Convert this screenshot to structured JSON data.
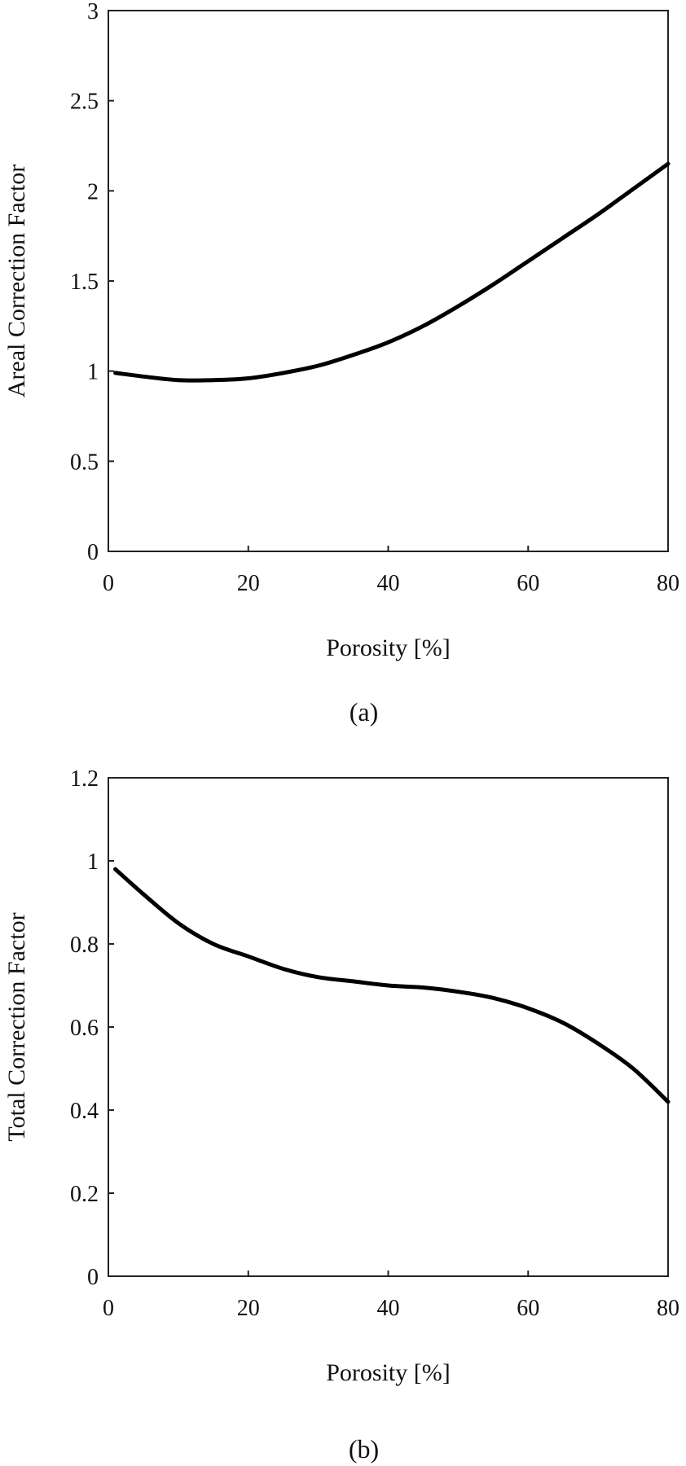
{
  "chart_data": [
    {
      "type": "line",
      "panel_label": "(a)",
      "title": "",
      "xlabel": "Porosity [%]",
      "ylabel": "Areal Correction Factor",
      "xlim": [
        0,
        80
      ],
      "ylim": [
        0,
        3
      ],
      "xticks": [
        "0",
        "20",
        "40",
        "60",
        "80"
      ],
      "yticks": [
        "0",
        "0.5",
        "1",
        "1.5",
        "2",
        "2.5",
        "3"
      ],
      "grid": false,
      "series": [
        {
          "color": "#000000",
          "x": [
            1,
            5,
            10,
            15,
            20,
            25,
            30,
            35,
            40,
            45,
            50,
            55,
            60,
            65,
            70,
            75,
            80
          ],
          "y": [
            0.99,
            0.97,
            0.95,
            0.95,
            0.96,
            0.99,
            1.03,
            1.09,
            1.16,
            1.25,
            1.36,
            1.48,
            1.61,
            1.74,
            1.87,
            2.01,
            2.15
          ]
        }
      ]
    },
    {
      "type": "line",
      "panel_label": "(b)",
      "title": "",
      "xlabel": "Porosity [%]",
      "ylabel": "Total Correction Factor",
      "xlim": [
        0,
        80
      ],
      "ylim": [
        0,
        1.2
      ],
      "xticks": [
        "0",
        "20",
        "40",
        "60",
        "80"
      ],
      "yticks": [
        "0",
        "0.2",
        "0.4",
        "0.6",
        "0.8",
        "1",
        "1.2"
      ],
      "grid": false,
      "series": [
        {
          "color": "#000000",
          "x": [
            1,
            5,
            10,
            15,
            20,
            25,
            30,
            35,
            40,
            45,
            50,
            55,
            60,
            65,
            70,
            75,
            80
          ],
          "y": [
            0.98,
            0.92,
            0.85,
            0.8,
            0.77,
            0.74,
            0.72,
            0.71,
            0.7,
            0.695,
            0.685,
            0.67,
            0.645,
            0.61,
            0.56,
            0.5,
            0.42
          ]
        }
      ]
    }
  ]
}
